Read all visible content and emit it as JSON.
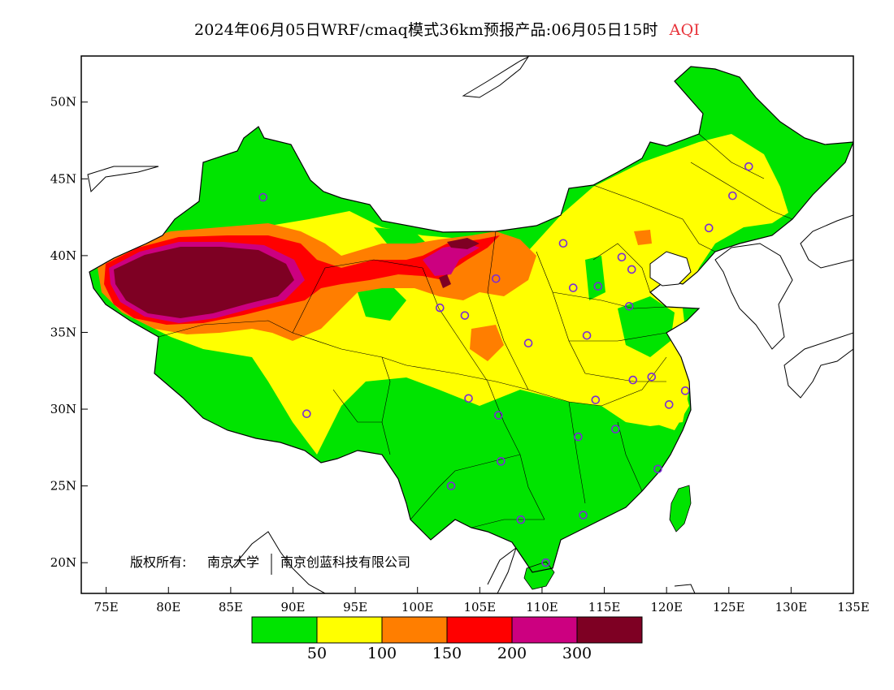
{
  "title": {
    "main": "2024年06月05日WRF/cmaq模式36km预报产品:06月05日15时",
    "variable": "AQI"
  },
  "credit": {
    "prefix": "版权所有:",
    "org1": "南京大学",
    "org2": "南京创蓝科技有限公司"
  },
  "axes": {
    "lat_labels": [
      "50N",
      "45N",
      "40N",
      "35N",
      "30N",
      "25N",
      "20N"
    ],
    "lon_labels": [
      "75E",
      "80E",
      "85E",
      "90E",
      "95E",
      "100E",
      "105E",
      "110E",
      "115E",
      "120E",
      "125E",
      "130E",
      "135E"
    ],
    "lat_range": [
      18,
      53
    ],
    "lon_range": [
      73,
      135
    ]
  },
  "colorbar": {
    "colors": [
      "#00e400",
      "#ffff00",
      "#ff7e00",
      "#ff0000",
      "#cc0080",
      "#7e0023"
    ],
    "labels": [
      "50",
      "100",
      "150",
      "200",
      "300"
    ]
  },
  "stations": [
    {
      "lon": 87.6,
      "lat": 43.8
    },
    {
      "lon": 91.1,
      "lat": 29.7
    },
    {
      "lon": 101.8,
      "lat": 36.6
    },
    {
      "lon": 103.8,
      "lat": 36.1
    },
    {
      "lon": 106.3,
      "lat": 38.5
    },
    {
      "lon": 111.7,
      "lat": 40.8
    },
    {
      "lon": 112.5,
      "lat": 37.9
    },
    {
      "lon": 114.5,
      "lat": 38.0
    },
    {
      "lon": 116.4,
      "lat": 39.9
    },
    {
      "lon": 117.2,
      "lat": 39.1
    },
    {
      "lon": 117.0,
      "lat": 36.7
    },
    {
      "lon": 113.6,
      "lat": 34.8
    },
    {
      "lon": 108.9,
      "lat": 34.3
    },
    {
      "lon": 104.1,
      "lat": 30.7
    },
    {
      "lon": 106.5,
      "lat": 29.6
    },
    {
      "lon": 106.7,
      "lat": 26.6
    },
    {
      "lon": 102.7,
      "lat": 25.0
    },
    {
      "lon": 108.3,
      "lat": 22.8
    },
    {
      "lon": 113.3,
      "lat": 23.1
    },
    {
      "lon": 110.3,
      "lat": 20.0
    },
    {
      "lon": 112.9,
      "lat": 28.2
    },
    {
      "lon": 115.9,
      "lat": 28.7
    },
    {
      "lon": 114.3,
      "lat": 30.6
    },
    {
      "lon": 117.3,
      "lat": 31.9
    },
    {
      "lon": 118.8,
      "lat": 32.1
    },
    {
      "lon": 120.2,
      "lat": 30.3
    },
    {
      "lon": 121.5,
      "lat": 31.2
    },
    {
      "lon": 119.3,
      "lat": 26.1
    },
    {
      "lon": 123.4,
      "lat": 41.8
    },
    {
      "lon": 125.3,
      "lat": 43.9
    },
    {
      "lon": 126.6,
      "lat": 45.8
    }
  ]
}
